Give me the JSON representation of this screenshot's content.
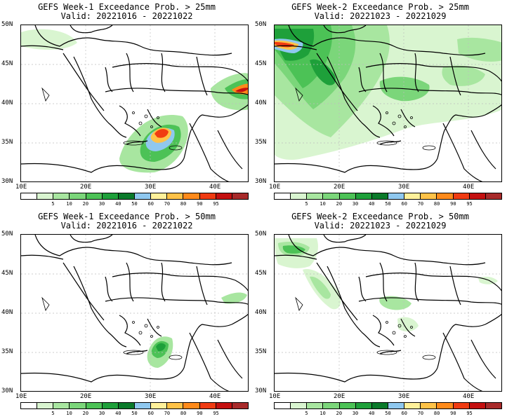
{
  "panels": [
    {
      "line1": "GEFS Week-1 Exceedance Prob. > 25mm",
      "line2": "Valid: 20221016 - 20221022"
    },
    {
      "line1": "GEFS Week-2 Exceedance Prob. > 25mm",
      "line2": "Valid: 20221023 - 20221029"
    },
    {
      "line1": "GEFS Week-1 Exceedance Prob. > 50mm",
      "line2": "Valid: 20221016 - 20221022"
    },
    {
      "line1": "GEFS Week-2 Exceedance Prob. > 50mm",
      "line2": "Valid: 20221023 - 20221029"
    }
  ],
  "lat_labels": [
    "50N",
    "45N",
    "40N",
    "35N",
    "30N"
  ],
  "lon_labels": [
    "10E",
    "20E",
    "30E",
    "40E"
  ],
  "colorbar": {
    "labels": [
      "5",
      "10",
      "20",
      "30",
      "40",
      "50",
      "60",
      "70",
      "80",
      "90",
      "95"
    ],
    "colors": [
      "#ffffff",
      "#d9f5d0",
      "#a8e6a0",
      "#7bd67a",
      "#4cc256",
      "#1ea03a",
      "#0a7a2a",
      "#8fc8ef",
      "#fff19a",
      "#ffc247",
      "#ff8a1a",
      "#f03b12",
      "#c41010",
      "#a82a2a"
    ]
  }
}
